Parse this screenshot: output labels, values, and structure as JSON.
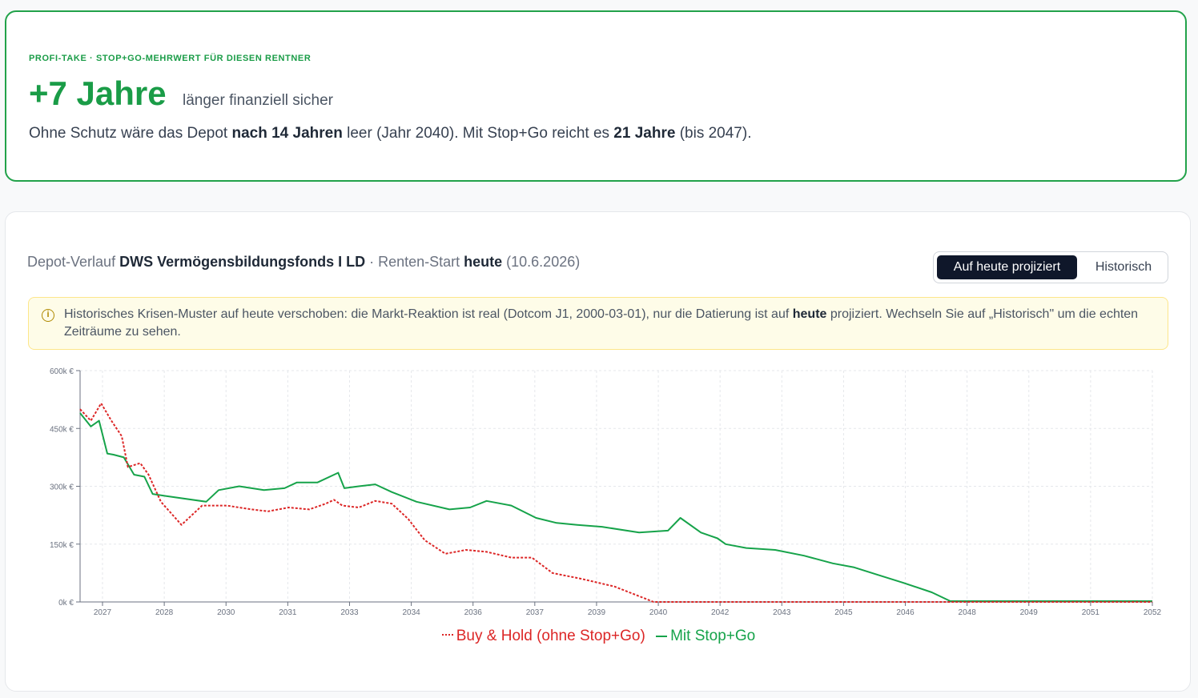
{
  "summary_card": {
    "eyebrow": "PROFI-TAKE · STOP+GO-MEHRWERT FÜR DIESEN RENTNER",
    "headline": "+7 Jahre",
    "headline_sub": "länger finanziell sicher",
    "text_1": "Ohne Schutz wäre das Depot ",
    "text_bold_1": "nach 14 Jahren",
    "text_2": " leer (Jahr 2040). Mit Stop+Go reicht es ",
    "text_bold_2": "21 Jahre",
    "text_3": " (bis 2047)."
  },
  "chart_card": {
    "title_prefix": "Depot-Verlauf ",
    "fund_name": "DWS Vermögensbildungsfonds I LD",
    "title_mid": " · Renten-Start ",
    "start_word": "heute",
    "start_date": " (10.6.2026)",
    "toggle": {
      "active": "Auf heute projiziert",
      "inactive": "Historisch"
    },
    "note": {
      "icon": "info-icon",
      "text_1": "Historisches Krisen-Muster auf heute verschoben: die Markt-Reaktion ist real (Dotcom J1, 2000-03-01), nur die Datierung ist auf ",
      "text_bold": "heute",
      "text_2": " projiziert. Wechseln Sie auf „Historisch\" um die echten Zeiträume zu sehen."
    }
  },
  "colors": {
    "accent": "#1a9c47",
    "buy_hold": "#dc2626",
    "stop_go": "#16a34a"
  },
  "chart_data": {
    "type": "line",
    "title": "",
    "xlabel": "",
    "ylabel": "",
    "x_ticks": [
      "2027",
      "2028",
      "2030",
      "2031",
      "2033",
      "2034",
      "2036",
      "2037",
      "2039",
      "2040",
      "2042",
      "2043",
      "2045",
      "2046",
      "2048",
      "2049",
      "2051",
      "2052"
    ],
    "y_ticks": [
      "0k €",
      "150k €",
      "300k €",
      "450k €",
      "600k €"
    ],
    "xlim": [
      2026.44,
      2052.45
    ],
    "ylim": [
      0,
      600000
    ],
    "grid": true,
    "legend_position": "bottom",
    "series": [
      {
        "name": "Buy & Hold (ohne Stop+Go)",
        "color": "#dc2626",
        "style": "dotted",
        "x": [
          2026.44,
          2026.7,
          2026.95,
          2027.2,
          2027.45,
          2027.6,
          2027.9,
          2028.1,
          2028.4,
          2028.9,
          2029.4,
          2030.0,
          2030.6,
          2031.0,
          2031.5,
          2032.0,
          2032.4,
          2032.6,
          2032.8,
          2033.2,
          2033.6,
          2034.0,
          2034.4,
          2034.8,
          2035.3,
          2035.8,
          2036.3,
          2036.9,
          2037.4,
          2037.9,
          2038.6,
          2039.4,
          2040.0,
          2040.35,
          2052.45
        ],
        "y": [
          500000,
          470000,
          515000,
          470000,
          430000,
          350000,
          360000,
          330000,
          260000,
          200000,
          250000,
          250000,
          240000,
          235000,
          245000,
          240000,
          255000,
          265000,
          250000,
          245000,
          262000,
          255000,
          215000,
          160000,
          125000,
          135000,
          130000,
          115000,
          115000,
          75000,
          60000,
          40000,
          15000,
          0,
          0
        ]
      },
      {
        "name": "Mit Stop+Go",
        "color": "#16a34a",
        "style": "solid",
        "x": [
          2026.44,
          2026.7,
          2026.9,
          2027.1,
          2027.25,
          2027.5,
          2027.75,
          2028.0,
          2028.2,
          2028.5,
          2029.5,
          2029.8,
          2030.3,
          2030.6,
          2030.9,
          2031.4,
          2031.7,
          2032.2,
          2032.7,
          2032.85,
          2033.2,
          2033.6,
          2034.0,
          2034.6,
          2035.4,
          2035.9,
          2036.3,
          2036.9,
          2037.5,
          2038.0,
          2038.5,
          2039.1,
          2040.0,
          2040.7,
          2041.0,
          2041.5,
          2041.9,
          2042.1,
          2042.6,
          2043.3,
          2044.0,
          2044.7,
          2045.2,
          2045.8,
          2046.4,
          2047.1,
          2047.55,
          2052.45
        ],
        "y": [
          490000,
          455000,
          470000,
          385000,
          382000,
          375000,
          330000,
          325000,
          280000,
          275000,
          260000,
          290000,
          300000,
          295000,
          290000,
          295000,
          310000,
          310000,
          335000,
          295000,
          300000,
          305000,
          285000,
          260000,
          240000,
          245000,
          262000,
          250000,
          218000,
          205000,
          200000,
          195000,
          180000,
          185000,
          218000,
          180000,
          165000,
          150000,
          140000,
          135000,
          120000,
          100000,
          90000,
          70000,
          50000,
          25000,
          2000,
          2000
        ]
      }
    ]
  }
}
